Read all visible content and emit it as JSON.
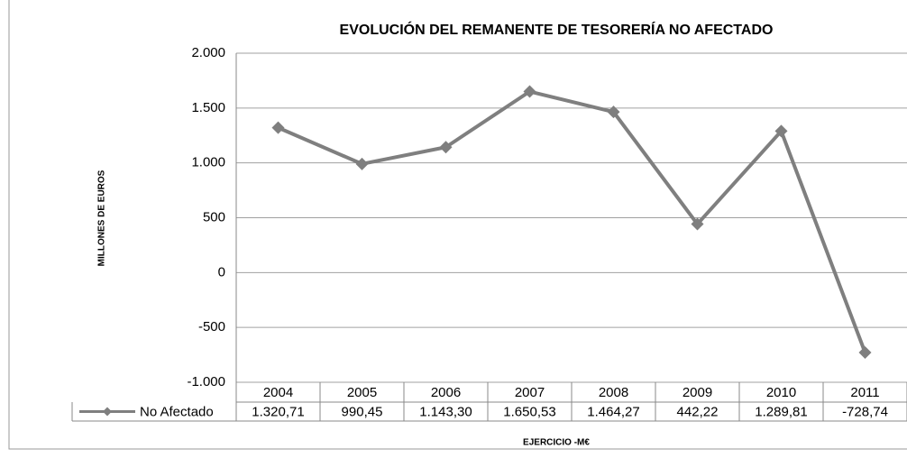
{
  "chart_data": {
    "type": "line",
    "title": "EVOLUCIÓN DEL REMANENTE  DE TESORERÍA NO AFECTADO",
    "y_label": "MILLONES DE EUROS",
    "x_label": "EJERCICIO  -M€",
    "categories": [
      "2004",
      "2005",
      "2006",
      "2007",
      "2008",
      "2009",
      "2010",
      "2011"
    ],
    "series": [
      {
        "name": "No Afectado",
        "color": "#7f7f7f",
        "values": [
          1320.71,
          990.45,
          1143.3,
          1650.53,
          1464.27,
          442.22,
          1289.81,
          -728.74
        ],
        "value_labels": [
          "1.320,71",
          "990,45",
          "1.143,30",
          "1.650,53",
          "1.464,27",
          "442,22",
          "1.289,81",
          "-728,74"
        ]
      }
    ],
    "ylim": [
      -1000,
      2000
    ],
    "yticks": [
      {
        "value": -1000,
        "label": "-1.000"
      },
      -500,
      0,
      500,
      {
        "value": 1000,
        "label": "1.000"
      },
      {
        "value": 1500,
        "label": "1.500"
      },
      {
        "value": 2000,
        "label": "2.000"
      }
    ],
    "grid": true
  }
}
